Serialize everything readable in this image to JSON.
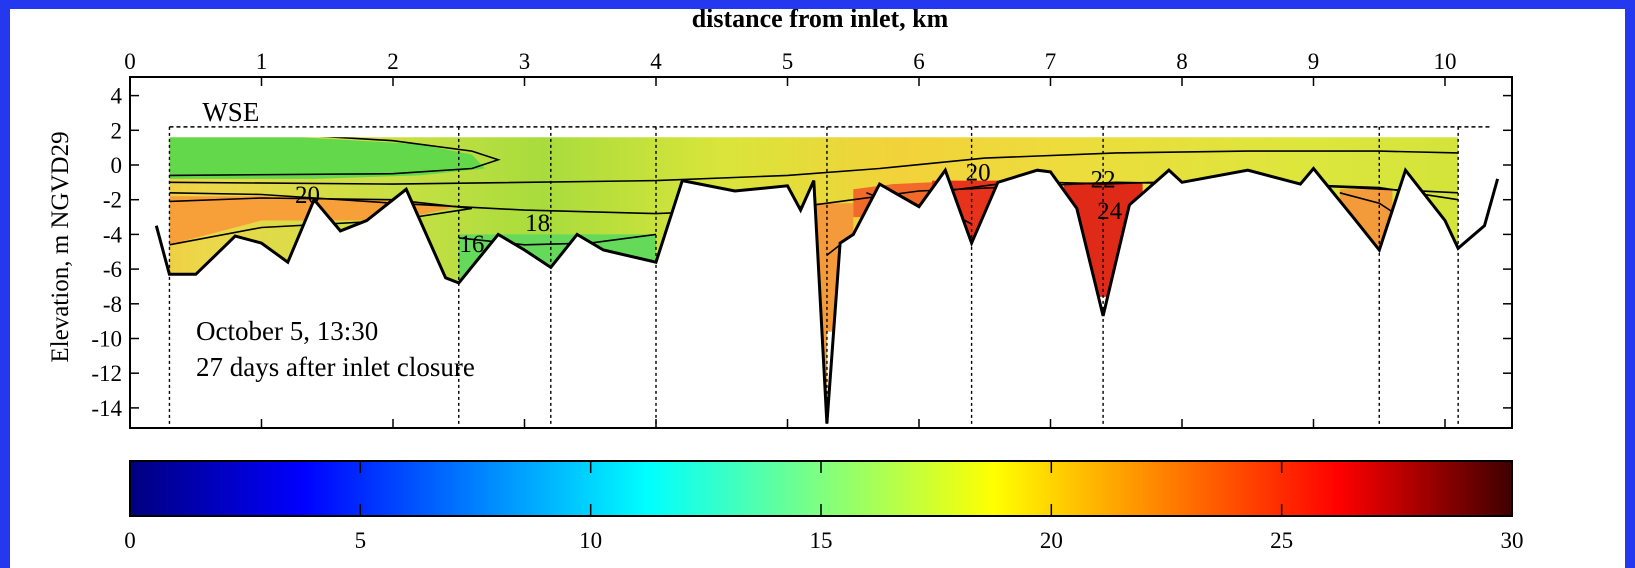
{
  "chart_data": {
    "type": "heatmap",
    "title": "",
    "x_axis_title": "distance from inlet, km",
    "xlabel": "distance from inlet, km",
    "ylabel": "Elevation, m NGVD29",
    "xlim": [
      0,
      10.5
    ],
    "ylim": [
      -15,
      5
    ],
    "x_ticks": [
      0,
      1,
      2,
      3,
      4,
      5,
      6,
      7,
      8,
      9,
      10
    ],
    "y_ticks": [
      4,
      2,
      0,
      -2,
      -4,
      -6,
      -8,
      -10,
      -12,
      -14
    ],
    "water_surface_label": "WSE",
    "water_surface_elevation": 2.2,
    "annotation_line1": "October 5, 13:30",
    "annotation_line2": "27 days after inlet closure",
    "contour_labels": [
      "20",
      "16",
      "18",
      "20",
      "22",
      "24"
    ],
    "profile_stations_km": [
      0.3,
      2.5,
      3.2,
      4.0,
      5.3,
      6.4,
      7.4,
      9.5,
      10.1
    ],
    "bed_profile": {
      "x": [
        0.2,
        0.3,
        0.5,
        0.8,
        1.0,
        1.2,
        1.4,
        1.6,
        1.8,
        2.1,
        2.4,
        2.5,
        2.8,
        3.0,
        3.2,
        3.4,
        3.6,
        4.0,
        4.2,
        4.6,
        5.0,
        5.1,
        5.2,
        5.3,
        5.4,
        5.5,
        5.7,
        6.0,
        6.2,
        6.4,
        6.6,
        6.9,
        7.0,
        7.2,
        7.4,
        7.6,
        7.9,
        8.0,
        8.5,
        8.9,
        9.0,
        9.3,
        9.5,
        9.7,
        10.0,
        10.1,
        10.3,
        10.4
      ],
      "y": [
        -3.5,
        -6.3,
        -6.3,
        -4.1,
        -4.5,
        -5.6,
        -2.0,
        -3.8,
        -3.2,
        -1.4,
        -6.5,
        -6.8,
        -4.0,
        -4.9,
        -5.9,
        -4.0,
        -4.9,
        -5.6,
        -0.9,
        -1.5,
        -1.2,
        -2.6,
        -0.9,
        -14.9,
        -4.5,
        -4.0,
        -1.1,
        -2.4,
        -0.3,
        -4.5,
        -1.0,
        -0.3,
        -0.4,
        -2.5,
        -8.7,
        -2.3,
        -0.3,
        -1.0,
        -0.3,
        -1.1,
        -0.2,
        -3.0,
        -4.9,
        -0.3,
        -3.2,
        -4.8,
        -3.5,
        -0.8
      ]
    },
    "colorbar": {
      "colormap": "jet",
      "min": 0,
      "max": 30,
      "ticks": [
        "0",
        "5",
        "10",
        "15",
        "20",
        "25",
        "30"
      ]
    }
  }
}
